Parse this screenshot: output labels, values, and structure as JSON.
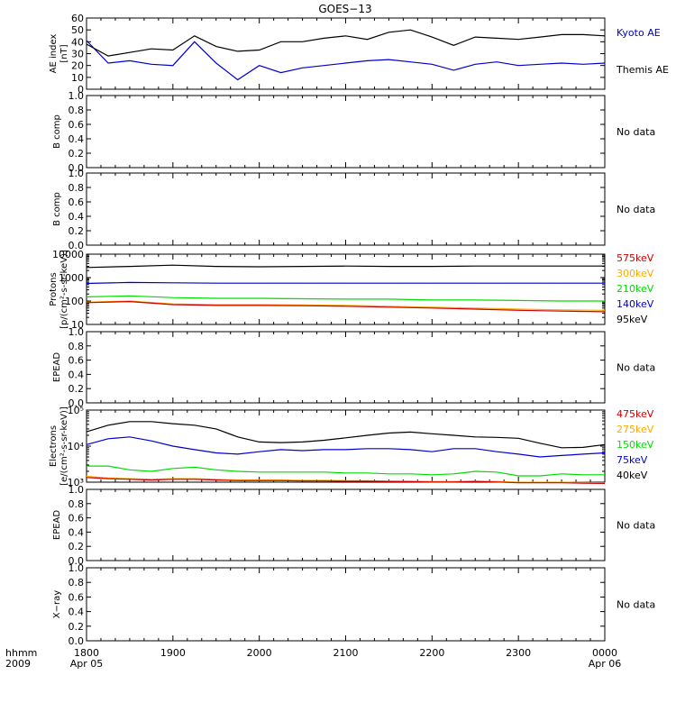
{
  "title": "GOES−13",
  "time_axis": {
    "row1_label": "hhmm",
    "row2_label": "2009",
    "ticks": [
      "1800",
      "1900",
      "2000",
      "2100",
      "2200",
      "2300",
      "0000"
    ],
    "date_labels": [
      {
        "at": "1800",
        "text": "Apr 05"
      },
      {
        "at": "0000",
        "text": "Apr 06"
      }
    ],
    "start": "2009-04-05 18:00",
    "end": "2009-04-06 00:00"
  },
  "colors": {
    "black": "#000000",
    "blue": "#0000cc",
    "green": "#00dd00",
    "yellow": "#ffaa00",
    "red": "#cc0000"
  },
  "no_data_text": "No data",
  "chart_data": [
    {
      "id": "ae-index",
      "type": "line",
      "ylabel": [
        "AE index",
        "[nT]"
      ],
      "ylim": [
        0,
        60
      ],
      "yticks": [
        0,
        10,
        20,
        30,
        40,
        50,
        60
      ],
      "x": [
        "18:00",
        "18:15",
        "18:30",
        "18:45",
        "19:00",
        "19:15",
        "19:30",
        "19:45",
        "20:00",
        "20:15",
        "20:30",
        "20:45",
        "21:00",
        "21:15",
        "21:30",
        "21:45",
        "22:00",
        "22:15",
        "22:30",
        "22:45",
        "23:00",
        "23:15",
        "23:30",
        "23:45",
        "00:00"
      ],
      "series": [
        {
          "name": "Kyoto AE",
          "color": "#0000cc",
          "values": [
            41,
            22,
            24,
            21,
            20,
            40,
            22,
            8,
            20,
            14,
            18,
            20,
            22,
            24,
            25,
            23,
            21,
            16,
            21,
            23,
            20,
            21,
            22,
            21,
            22
          ]
        },
        {
          "name": "Themis AE",
          "color": "#000000",
          "values": [
            38,
            28,
            31,
            34,
            33,
            45,
            36,
            32,
            33,
            40,
            40,
            43,
            45,
            42,
            48,
            50,
            44,
            37,
            44,
            43,
            42,
            44,
            46,
            46,
            45
          ]
        }
      ]
    },
    {
      "id": "b-comp-1",
      "type": "line",
      "ylabel": [
        "B comp"
      ],
      "ylim": [
        0,
        1.0
      ],
      "yticks": [
        0.0,
        0.2,
        0.4,
        0.6,
        0.8,
        1.0
      ],
      "series": [],
      "status": "No data"
    },
    {
      "id": "b-comp-2",
      "type": "line",
      "ylabel": [
        "B comp"
      ],
      "ylim": [
        0,
        1.0
      ],
      "yticks": [
        0.0,
        0.2,
        0.4,
        0.6,
        0.8,
        1.0
      ],
      "series": [],
      "status": "No data"
    },
    {
      "id": "protons",
      "type": "line",
      "ylabel": [
        "Protons",
        "[p/(cm²-s-sr-keV)]"
      ],
      "yscale": "log",
      "ylim": [
        10,
        10000
      ],
      "yticks": [
        "10",
        "100",
        "1000",
        "10000"
      ],
      "x": [
        "18:00",
        "18:30",
        "19:00",
        "19:30",
        "20:00",
        "20:30",
        "21:00",
        "21:30",
        "22:00",
        "22:30",
        "23:00",
        "23:30",
        "00:00"
      ],
      "series": [
        {
          "name": "95keV",
          "color": "#000000",
          "values": [
            2700,
            3000,
            3400,
            3000,
            2900,
            3000,
            3100,
            3000,
            3000,
            3100,
            3100,
            3100,
            3100
          ]
        },
        {
          "name": "140keV",
          "color": "#0000cc",
          "values": [
            560,
            620,
            600,
            580,
            580,
            580,
            580,
            580,
            580,
            580,
            580,
            580,
            580
          ]
        },
        {
          "name": "210keV",
          "color": "#00dd00",
          "values": [
            150,
            165,
            140,
            130,
            130,
            125,
            120,
            120,
            110,
            110,
            105,
            100,
            100
          ]
        },
        {
          "name": "300keV",
          "color": "#ffaa00",
          "values": [
            90,
            100,
            75,
            70,
            70,
            68,
            65,
            60,
            55,
            50,
            45,
            42,
            40
          ]
        },
        {
          "name": "575keV",
          "color": "#cc0000",
          "values": [
            85,
            95,
            70,
            65,
            65,
            63,
            60,
            55,
            50,
            45,
            40,
            37,
            35
          ]
        }
      ]
    },
    {
      "id": "epead-1",
      "type": "line",
      "ylabel": [
        "EPEAD"
      ],
      "ylim": [
        0,
        1.0
      ],
      "yticks": [
        0.0,
        0.2,
        0.4,
        0.6,
        0.8,
        1.0
      ],
      "series": [],
      "status": "No data"
    },
    {
      "id": "electrons",
      "type": "line",
      "ylabel": [
        "Electrons",
        "[e/(cm²-s-sr-keV)]"
      ],
      "yscale": "log",
      "ylim": [
        1000,
        100000
      ],
      "yticks": [
        "10³",
        "10⁴",
        "10⁵"
      ],
      "x": [
        "18:00",
        "18:15",
        "18:30",
        "18:45",
        "19:00",
        "19:15",
        "19:30",
        "19:45",
        "20:00",
        "20:15",
        "20:30",
        "20:45",
        "21:00",
        "21:15",
        "21:30",
        "21:45",
        "22:00",
        "22:15",
        "22:30",
        "22:45",
        "23:00",
        "23:15",
        "23:30",
        "23:45",
        "00:00"
      ],
      "series": [
        {
          "name": "40keV",
          "color": "#000000",
          "values": [
            25000,
            38000,
            48000,
            48000,
            42000,
            38000,
            30000,
            18000,
            13000,
            12500,
            13000,
            14500,
            17000,
            20000,
            23000,
            24500,
            22000,
            20000,
            18000,
            17500,
            16500,
            12000,
            9000,
            9200,
            11000
          ]
        },
        {
          "name": "75keV",
          "color": "#0000cc",
          "values": [
            11000,
            16000,
            18000,
            14000,
            10000,
            8000,
            6500,
            6000,
            7000,
            8000,
            7500,
            8000,
            8000,
            8500,
            8500,
            8000,
            7000,
            8500,
            8500,
            7000,
            6000,
            5000,
            5500,
            6000,
            6500
          ]
        },
        {
          "name": "150keV",
          "color": "#00dd00",
          "values": [
            2800,
            2800,
            2200,
            2000,
            2400,
            2600,
            2200,
            2000,
            1900,
            1900,
            1900,
            1900,
            1800,
            1800,
            1700,
            1700,
            1600,
            1700,
            2000,
            1900,
            1500,
            1500,
            1700,
            1600,
            1600
          ]
        },
        {
          "name": "275keV",
          "color": "#ffaa00",
          "values": [
            1450,
            1300,
            1250,
            1200,
            1250,
            1250,
            1200,
            1150,
            1150,
            1150,
            1120,
            1120,
            1100,
            1100,
            1080,
            1070,
            1050,
            1050,
            1080,
            1050,
            1000,
            1000,
            1000,
            980,
            960
          ]
        },
        {
          "name": "475keV",
          "color": "#cc0000",
          "values": [
            1350,
            1250,
            1200,
            1150,
            1200,
            1200,
            1150,
            1100,
            1100,
            1100,
            1080,
            1080,
            1060,
            1060,
            1040,
            1030,
            1010,
            1010,
            1040,
            1010,
            960,
            960,
            960,
            940,
            920
          ]
        }
      ]
    },
    {
      "id": "epead-2",
      "type": "line",
      "ylabel": [
        "EPEAD"
      ],
      "ylim": [
        0,
        1.0
      ],
      "yticks": [
        0.0,
        0.2,
        0.4,
        0.6,
        0.8,
        1.0
      ],
      "series": [],
      "status": "No data"
    },
    {
      "id": "x-ray",
      "type": "line",
      "ylabel": [
        "X−ray"
      ],
      "ylim": [
        0,
        1.0
      ],
      "yticks": [
        0.0,
        0.2,
        0.4,
        0.6,
        0.8,
        1.0
      ],
      "series": [],
      "status": "No data"
    }
  ]
}
